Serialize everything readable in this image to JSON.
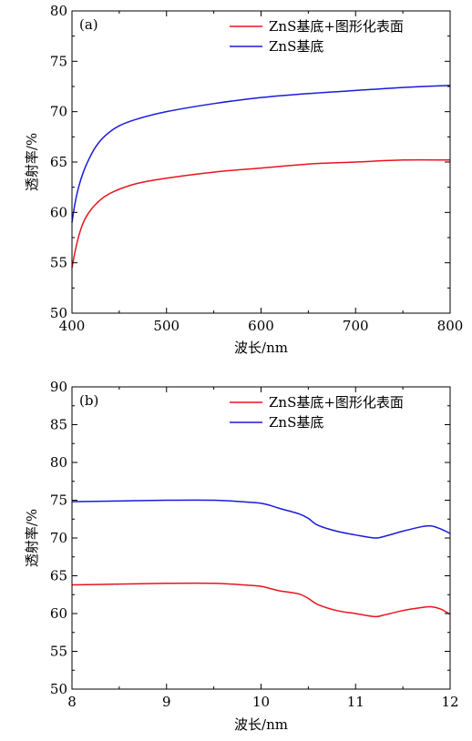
{
  "chart_data": [
    {
      "type": "line",
      "panel_label": "(a)",
      "xlabel": "波长/nm",
      "ylabel": "透射率/%",
      "xlim": [
        400,
        800
      ],
      "ylim": [
        50,
        80
      ],
      "xticks": [
        400,
        500,
        600,
        700,
        800
      ],
      "yticks": [
        50,
        55,
        60,
        65,
        70,
        75,
        80
      ],
      "grid": false,
      "legend_position": "top-right",
      "series": [
        {
          "name": "ZnS基底+图形化表面",
          "color": "#e8141e",
          "x": [
            400,
            403,
            407,
            412,
            418,
            425,
            435,
            450,
            470,
            500,
            550,
            600,
            650,
            700,
            750,
            800
          ],
          "y": [
            54.5,
            56.0,
            57.6,
            59.0,
            60.0,
            60.8,
            61.6,
            62.3,
            62.9,
            63.4,
            64.0,
            64.4,
            64.8,
            65.0,
            65.2,
            65.2
          ]
        },
        {
          "name": "ZnS基底",
          "color": "#1a1adc",
          "x": [
            400,
            403,
            407,
            412,
            418,
            425,
            435,
            450,
            470,
            500,
            550,
            600,
            650,
            700,
            750,
            800
          ],
          "y": [
            59.0,
            60.8,
            62.5,
            64.0,
            65.3,
            66.5,
            67.6,
            68.6,
            69.3,
            70.0,
            70.8,
            71.4,
            71.8,
            72.1,
            72.4,
            72.6
          ]
        }
      ]
    },
    {
      "type": "line",
      "panel_label": "(b)",
      "xlabel": "波长/nm",
      "ylabel": "透射率/%",
      "xlim": [
        8,
        12
      ],
      "ylim": [
        50,
        90
      ],
      "xticks": [
        8,
        9,
        10,
        11,
        12
      ],
      "yticks": [
        50,
        55,
        60,
        65,
        70,
        75,
        80,
        85,
        90
      ],
      "grid": false,
      "legend_position": "top-right",
      "series": [
        {
          "name": "ZnS基底+图形化表面",
          "color": "#e8141e",
          "x": [
            8.0,
            8.5,
            9.0,
            9.5,
            9.8,
            10.0,
            10.1,
            10.2,
            10.4,
            10.5,
            10.6,
            10.8,
            11.0,
            11.2,
            11.3,
            11.5,
            11.7,
            11.8,
            11.9,
            12.0
          ],
          "y": [
            63.8,
            63.9,
            64.0,
            64.0,
            63.8,
            63.6,
            63.3,
            63.0,
            62.6,
            62.0,
            61.2,
            60.4,
            60.0,
            59.6,
            59.8,
            60.4,
            60.8,
            60.9,
            60.6,
            59.9
          ]
        },
        {
          "name": "ZnS基底",
          "color": "#1a1adc",
          "x": [
            8.0,
            8.5,
            9.0,
            9.5,
            9.8,
            10.0,
            10.1,
            10.2,
            10.4,
            10.5,
            10.6,
            10.8,
            11.0,
            11.2,
            11.3,
            11.5,
            11.7,
            11.8,
            11.9,
            12.0
          ],
          "y": [
            74.8,
            74.9,
            75.0,
            75.0,
            74.8,
            74.6,
            74.3,
            73.9,
            73.2,
            72.6,
            71.7,
            70.9,
            70.4,
            70.0,
            70.2,
            70.9,
            71.5,
            71.6,
            71.2,
            70.6
          ]
        }
      ]
    }
  ]
}
